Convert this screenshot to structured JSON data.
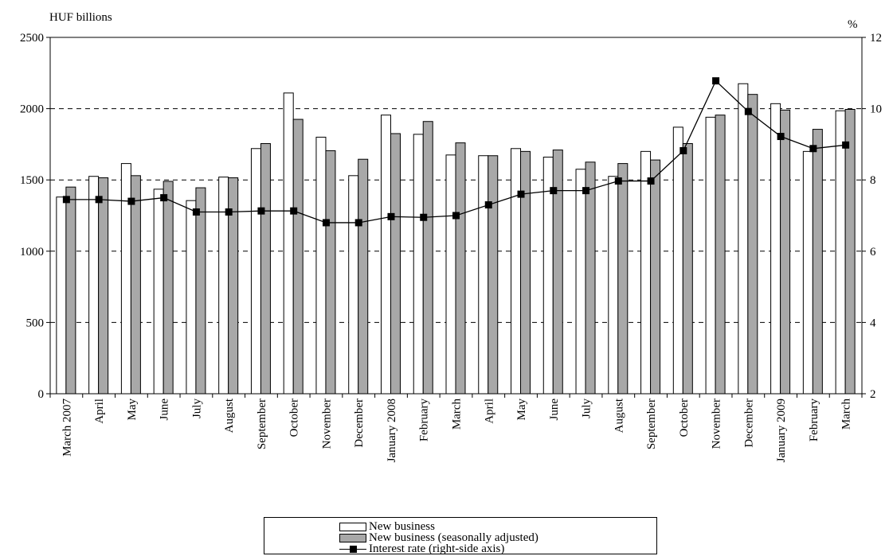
{
  "chart_data": {
    "type": "bar",
    "left_axis_label": "HUF billions",
    "right_axis_label": "%",
    "ylim": [
      0,
      2500
    ],
    "y_ticks": [
      "0",
      "500",
      "1000",
      "1500",
      "2000",
      "2500"
    ],
    "y2lim": [
      2,
      12
    ],
    "y2_ticks": [
      "2",
      "4",
      "6",
      "8",
      "10",
      "12"
    ],
    "grid": "dashed horizontal",
    "legend_position": "bottom",
    "categories": [
      "March 2007",
      "April",
      "May",
      "June",
      "July",
      "August",
      "September",
      "October",
      "November",
      "December",
      "January 2008",
      "February",
      "March",
      "April",
      "May",
      "June",
      "July",
      "August",
      "September",
      "October",
      "November",
      "December",
      "January 2009",
      "February",
      "March"
    ],
    "series": [
      {
        "name": "New business",
        "kind": "bar",
        "color": "#ffffff",
        "values": [
          1380,
          1525,
          1615,
          1435,
          1355,
          1520,
          1720,
          2110,
          1800,
          1530,
          1955,
          1820,
          1675,
          1670,
          1720,
          1660,
          1575,
          1525,
          1700,
          1870,
          1940,
          2175,
          2035,
          1700,
          1985
        ]
      },
      {
        "name": "New business (seasonally adjusted)",
        "kind": "bar",
        "color": "#a8a8a8",
        "values": [
          1450,
          1515,
          1530,
          1490,
          1445,
          1515,
          1755,
          1925,
          1705,
          1645,
          1825,
          1910,
          1760,
          1670,
          1700,
          1710,
          1625,
          1615,
          1640,
          1755,
          1955,
          2100,
          1990,
          1855,
          1995
        ]
      },
      {
        "name": "Interest rate (right-side axis)",
        "kind": "line",
        "axis": "right",
        "color": "#000000",
        "values": [
          7.45,
          7.45,
          7.4,
          7.5,
          7.1,
          7.1,
          7.13,
          7.13,
          6.8,
          6.8,
          6.97,
          6.95,
          7.0,
          7.3,
          7.6,
          7.7,
          7.7,
          7.97,
          7.97,
          8.82,
          10.78,
          9.92,
          9.22,
          8.88,
          8.98
        ]
      }
    ]
  }
}
